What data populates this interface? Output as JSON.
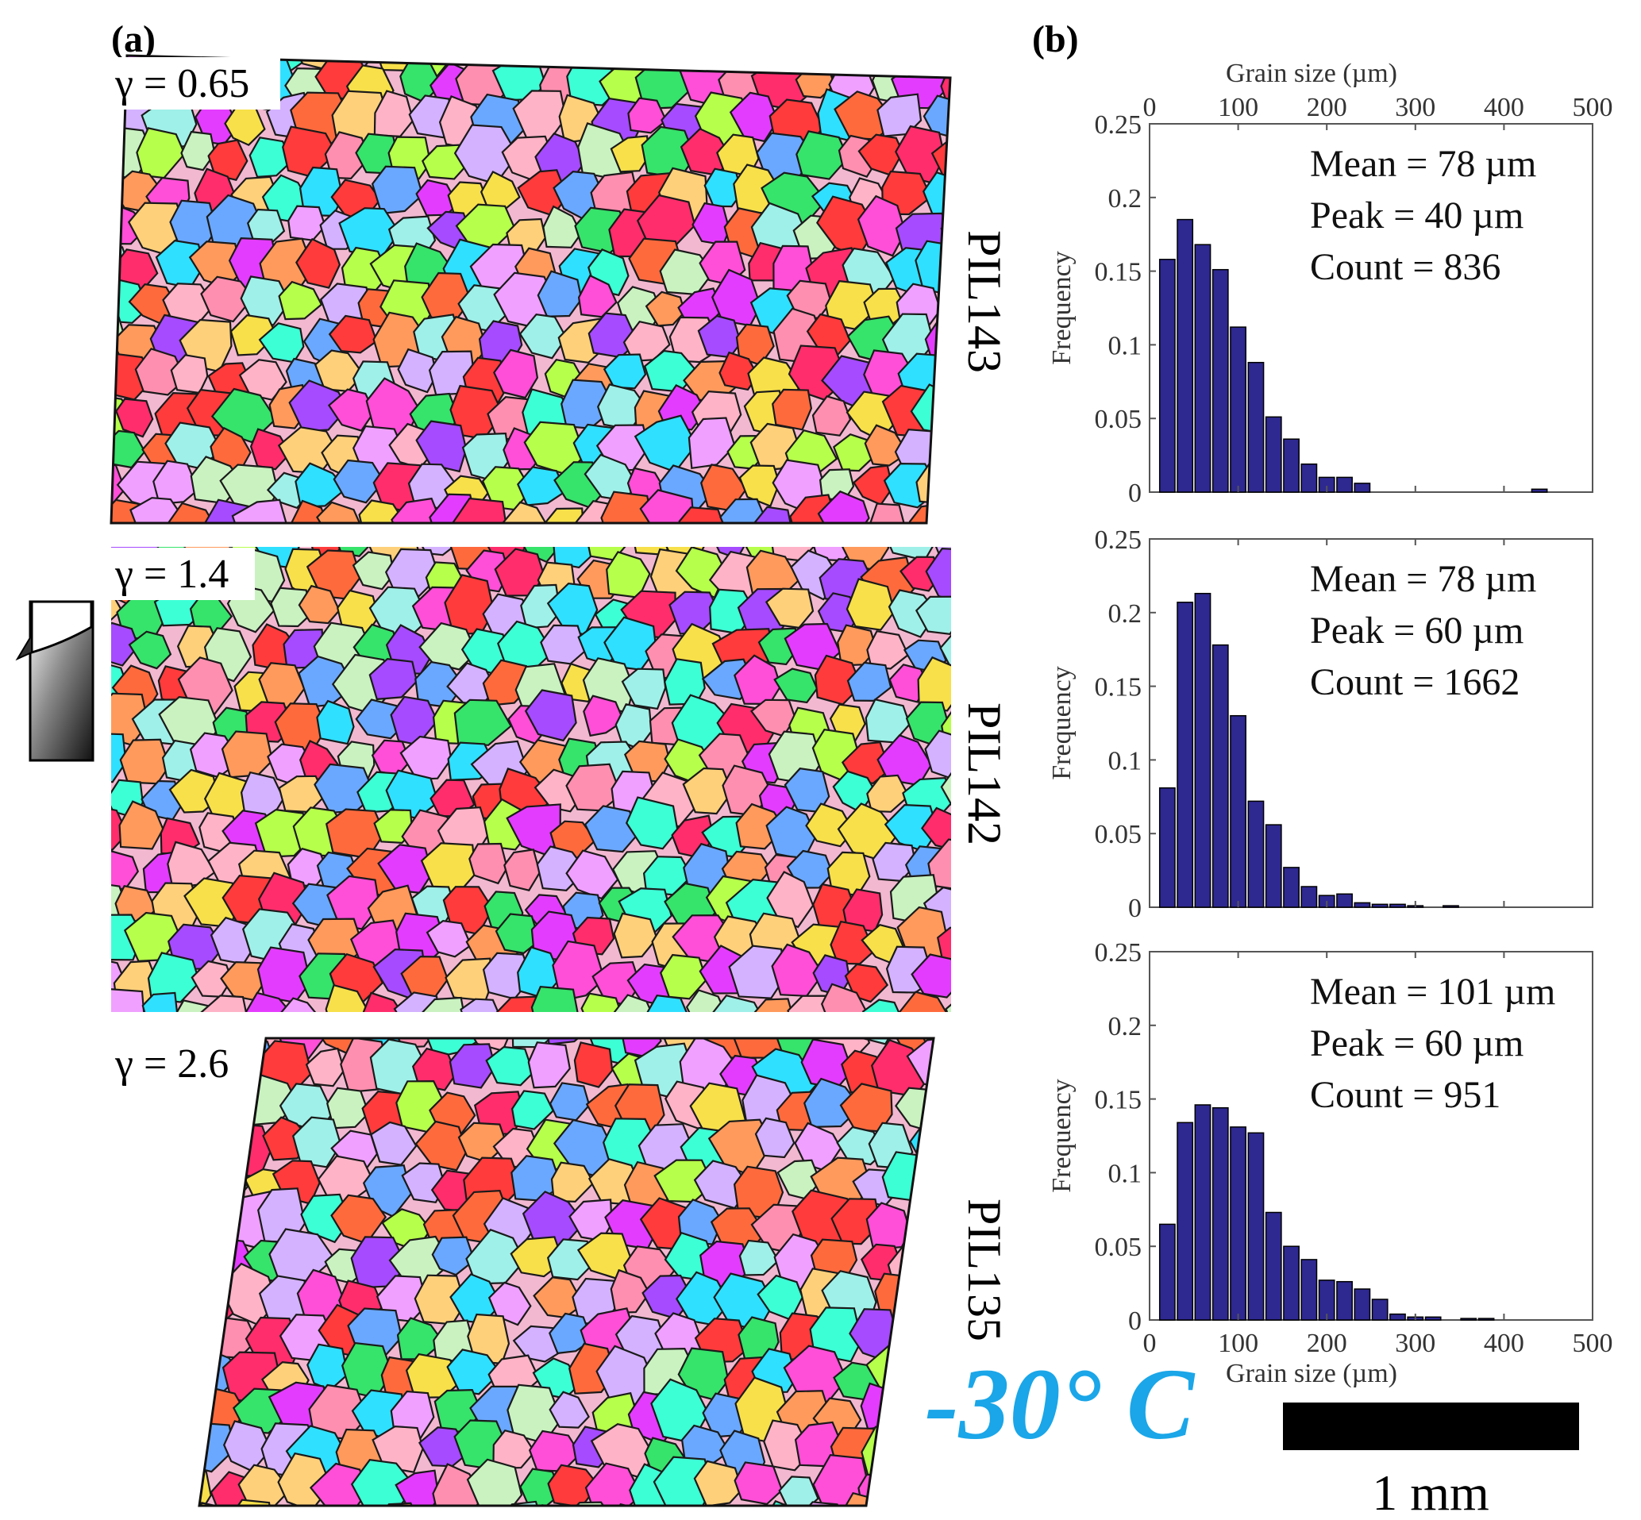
{
  "panel_a_label": "(a)",
  "panel_b_label": "(b)",
  "maps": [
    {
      "strain": "γ = 0.65",
      "sample": "PIL143"
    },
    {
      "strain": "γ = 1.4",
      "sample": "PIL142"
    },
    {
      "strain": "γ = 2.6",
      "sample": "PIL135"
    }
  ],
  "temperature": "-30° C",
  "scale_bar_label": "1 mm",
  "colors": {
    "bar_fill": "#2e2891",
    "temperature": "#1aa6e8",
    "grain_palette": [
      "#ff2d6b",
      "#ff6a3d",
      "#ff4fd8",
      "#e43cff",
      "#a64bff",
      "#ff9a5c",
      "#f7e04a",
      "#b6ff4a",
      "#36e36b",
      "#3dffd6",
      "#2fe0ff",
      "#6aa8ff",
      "#ffb3c7",
      "#d4b2ff",
      "#ff8fb0",
      "#c9f2c0",
      "#ffd07a",
      "#ff3b3b",
      "#f0a0ff",
      "#9ff0e8"
    ]
  },
  "chart_data": [
    {
      "type": "bar",
      "sample": "PIL143",
      "x": [
        20,
        40,
        60,
        80,
        100,
        120,
        140,
        160,
        180,
        200,
        220,
        240,
        260,
        280,
        300,
        320,
        340,
        360,
        380,
        400,
        420,
        440,
        460,
        480
      ],
      "values": [
        0.158,
        0.185,
        0.168,
        0.151,
        0.112,
        0.088,
        0.051,
        0.036,
        0.019,
        0.01,
        0.01,
        0.006,
        0,
        0,
        0,
        0,
        0,
        0,
        0,
        0,
        0,
        0.002,
        0,
        0
      ],
      "top_xlabel": "Grain size (µm)",
      "ylabel": "Frequency",
      "xlim": [
        0,
        500
      ],
      "ylim": [
        0,
        0.25
      ],
      "xticks": [
        "0",
        "100",
        "200",
        "300",
        "400",
        "500"
      ],
      "yticks": [
        "0",
        "0.05",
        "0.1",
        "0.15",
        "0.2",
        "0.25"
      ],
      "stats": [
        "Mean = 78 µm",
        "Peak = 40 µm",
        "Count = 836"
      ]
    },
    {
      "type": "bar",
      "sample": "PIL142",
      "x": [
        20,
        40,
        60,
        80,
        100,
        120,
        140,
        160,
        180,
        200,
        220,
        240,
        260,
        280,
        300,
        320,
        340,
        360,
        380,
        400,
        420,
        440,
        460,
        480
      ],
      "values": [
        0.081,
        0.207,
        0.213,
        0.178,
        0.13,
        0.072,
        0.056,
        0.027,
        0.014,
        0.008,
        0.009,
        0.003,
        0.002,
        0.002,
        0.001,
        0,
        0.001,
        0,
        0,
        0,
        0,
        0,
        0,
        0
      ],
      "ylabel": "Frequency",
      "xlim": [
        0,
        500
      ],
      "ylim": [
        0,
        0.25
      ],
      "yticks": [
        "0",
        "0.05",
        "0.1",
        "0.15",
        "0.2",
        "0.25"
      ],
      "stats": [
        "Mean = 78 µm",
        "Peak = 60 µm",
        "Count = 1662"
      ]
    },
    {
      "type": "bar",
      "sample": "PIL135",
      "x": [
        20,
        40,
        60,
        80,
        100,
        120,
        140,
        160,
        180,
        200,
        220,
        240,
        260,
        280,
        300,
        320,
        340,
        360,
        380,
        400,
        420,
        440,
        460,
        480
      ],
      "values": [
        0.065,
        0.134,
        0.146,
        0.144,
        0.131,
        0.127,
        0.073,
        0.05,
        0.041,
        0.027,
        0.026,
        0.021,
        0.014,
        0.004,
        0.002,
        0.002,
        0,
        0.001,
        0.001,
        0,
        0,
        0,
        0,
        0
      ],
      "xlabel": "Grain size (µm)",
      "ylabel": "Frequency",
      "xlim": [
        0,
        500
      ],
      "ylim": [
        0,
        0.25
      ],
      "xticks": [
        "0",
        "100",
        "200",
        "300",
        "400",
        "500"
      ],
      "yticks": [
        "0",
        "0.05",
        "0.1",
        "0.15",
        "0.2",
        "0.25"
      ],
      "stats": [
        "Mean = 101 µm",
        "Peak = 60 µm",
        "Count = 951"
      ]
    }
  ]
}
